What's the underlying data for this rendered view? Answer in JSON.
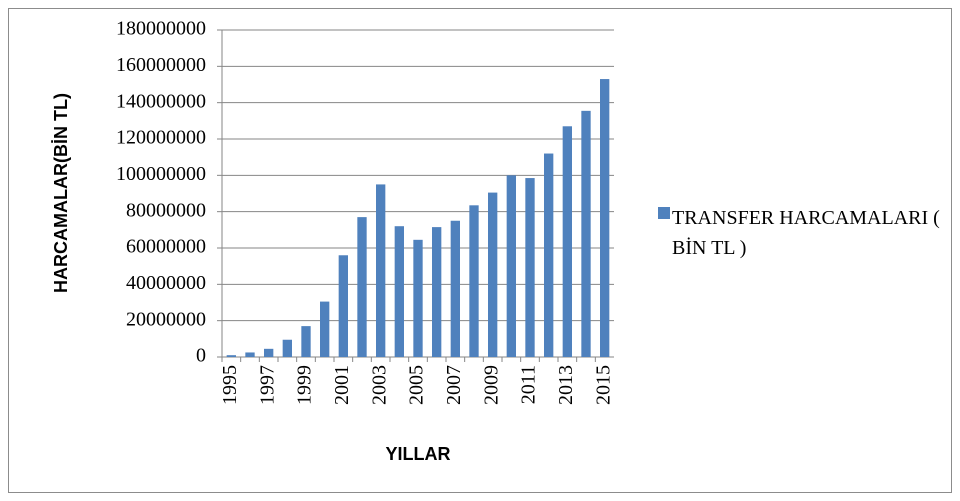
{
  "chart_data": {
    "type": "bar",
    "categories": [
      "1995",
      null,
      "1997",
      null,
      "1999",
      null,
      "2001",
      null,
      "2003",
      null,
      "2005",
      null,
      "2007",
      null,
      "2009",
      null,
      "2011",
      null,
      "2013",
      null,
      "2015"
    ],
    "series": [
      {
        "name": "TRANSFER HARCAMALARI ( BİN TL )",
        "color": "#4f81bd",
        "values": [
          1000000,
          2500000,
          4500000,
          9500000,
          17000000,
          30500000,
          56000000,
          77000000,
          95000000,
          72000000,
          64500000,
          71500000,
          75000000,
          83500000,
          90500000,
          100000000,
          98500000,
          112000000,
          127000000,
          135500000,
          153000000
        ]
      }
    ],
    "xlabel": "YILLAR",
    "ylabel": "HARCAMALAR(BİN TL)",
    "ylim": [
      0,
      180000000
    ],
    "yticks": [
      0,
      20000000,
      40000000,
      60000000,
      80000000,
      100000000,
      120000000,
      140000000,
      160000000,
      180000000
    ],
    "grid": true,
    "legend": "right"
  }
}
